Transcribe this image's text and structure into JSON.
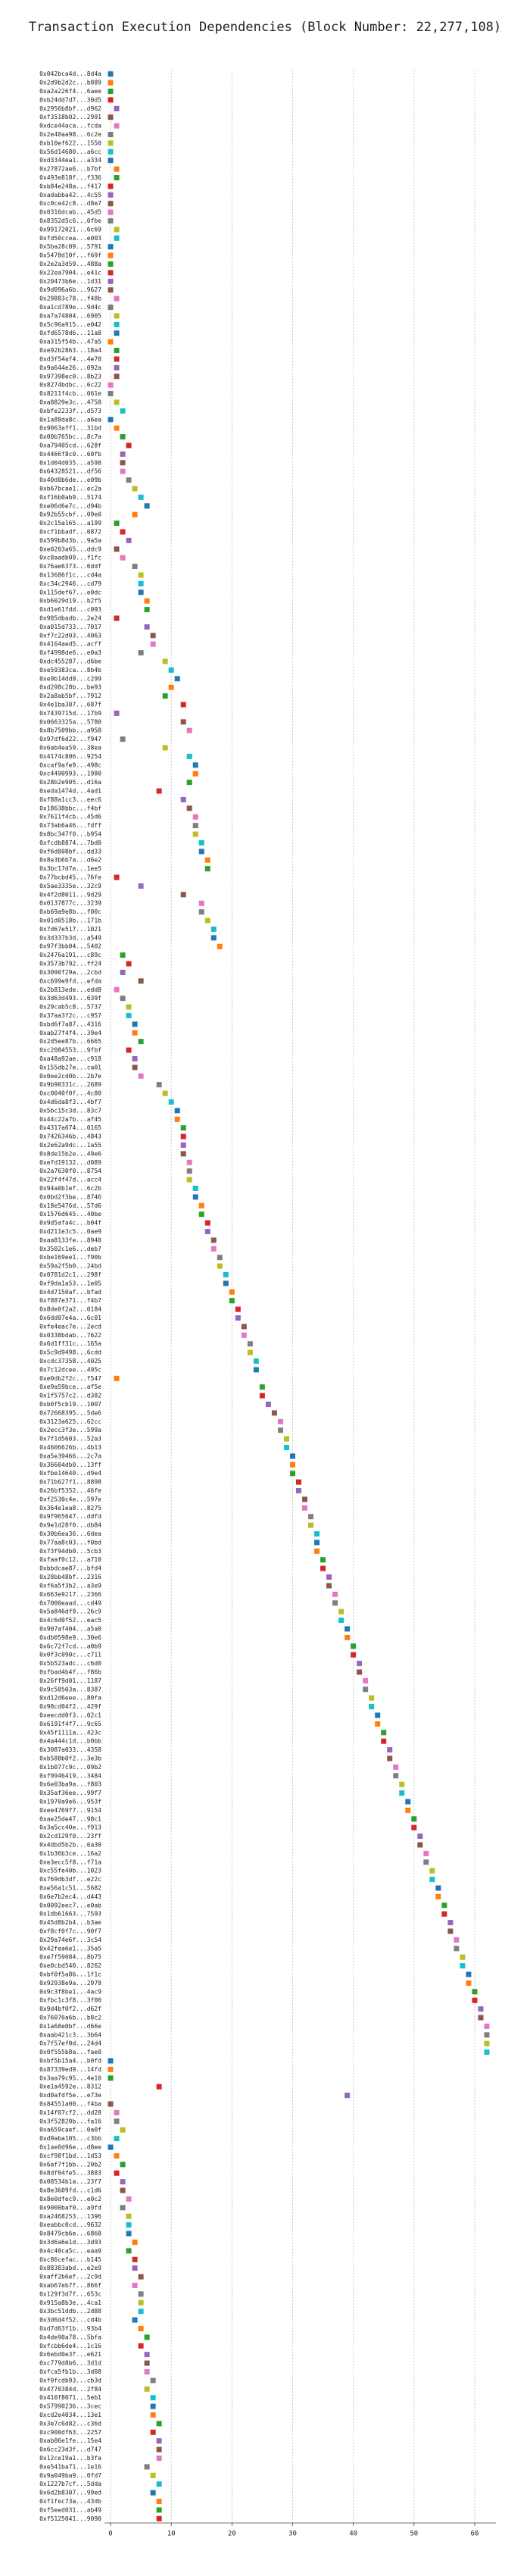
{
  "chart_data": {
    "type": "scatter",
    "orientation": "horizontal",
    "title": "Transaction Execution Dependencies (Block Number: 22,277,108)",
    "xlim": [
      -1,
      63.5
    ],
    "xticks": [
      0,
      10,
      20,
      30,
      40,
      50,
      60
    ],
    "grid": true,
    "palette": [
      "#1f77b4",
      "#ff7f0e",
      "#2ca02c",
      "#d62728",
      "#9467bd",
      "#8c564b",
      "#e377c2",
      "#7f7f7f",
      "#bcbd22",
      "#17becf"
    ],
    "categories": [
      "0x042bca4d...8d4a",
      "0x2d9b2d2c...b889",
      "0xa2a226f4...6aee",
      "0xb24dd7d7...30d5",
      "0x2956b8bf...d962",
      "0xf3518b02...2991",
      "0xdce44aca...fcda",
      "0x2e48aa98...6c2e",
      "0xb10ef622...1550",
      "0x56d14680...a6cc",
      "0xd3344ea1...a334",
      "0x27872ae6...b7bf",
      "0x493e818f...f336",
      "0xb84e248a...f417",
      "0xadabba42...4c55",
      "0xc0ce42c8...d8e7",
      "0x0316dcab...45d5",
      "0x8352d5c6...0fbe",
      "0x99172021...6c69",
      "0xfd50ccea...e003",
      "0x5ba28c09...5791",
      "0x5478d10f...f69f",
      "0x2e2a3d59...488a",
      "0x22ea7904...e41c",
      "0x20473b6e...1d31",
      "0x9d096a6b...9627",
      "0x29883c78...f48b",
      "0xa1cd789e...9d4c",
      "0xa7a74804...6905",
      "0x5c96a915...e042",
      "0xfd6578d6...11a8",
      "0xa315f54b...47a5",
      "0xe92b2863...18a4",
      "0xd3f54af4...4e70",
      "0x9a644e26...092a",
      "0x97398ec0...8b23",
      "0x8274bdbc...6c22",
      "0x8211f4cb...061e",
      "0xa8829e3c...4758",
      "0xbfe2233f...d573",
      "0x1a88da8c...a6ea",
      "0x9063aff1...31bd",
      "0x00b765bc...8c7a",
      "0xa79405cd...628f",
      "0x4466f8c0...60fb",
      "0x1d04d035...a598",
      "0x64328521...df56",
      "0x40d0b6de...e09b",
      "0xb67bcae1...ec2a",
      "0xf16b0ab9...5174",
      "0xe06d6e7c...d94b",
      "0x92b55cbf...09e0",
      "0x2c15a165...a199",
      "0xcf1bbadf...0872",
      "0x599b8d3b...9a5a",
      "0xe0203a65...ddc9",
      "0xc8aadb09...f1fc",
      "0x76ae6373...6ddf",
      "0x13686f1c...cd4a",
      "0xc34c2946...cd79",
      "0x115def67...e0dc",
      "0xb6029d19...b2f5",
      "0xd1e61fdd...c093",
      "0x985dbadb...2e24",
      "0xa015d733...7017",
      "0xf7c22d03...4063",
      "0x4164aed5...acff",
      "0xf4998de6...e0a3",
      "0xdc455287...d6be",
      "0xe59383ca...8b4b",
      "0xe9b14dd9...c299",
      "0xd298c28b...be93",
      "0x2a8ab5bf...7912",
      "0x4e1ba387...687f",
      "0x7439715d...17b9",
      "0x0663325a...5780",
      "0x8b7509bb...a958",
      "0x97df6d22...f947",
      "0x6ab4ea59...38ea",
      "0x4174c806...9254",
      "0xcaf9afe9...498c",
      "0xc4490993...1980",
      "0x28b2e905...d16a",
      "0xeda1474d...4ad1",
      "0xf88a1cc3...eec6",
      "0x18638bbc...f4bf",
      "0x7611f4cb...45d6",
      "0x73ab6a46...fdff",
      "0x8bc347f0...b954",
      "0xfcdb8874...7bd0",
      "0xf6d808bf...dd33",
      "0x8e3b6b7a...d6e2",
      "0x3bc17d7e...1ee5",
      "0x77bcbd45...76fe",
      "0x5ae3335e...32c9",
      "0x4f2d8011...9d29",
      "0x0137877c...3239",
      "0xb69a9e8b...f00c",
      "0x01d0518b...171b",
      "0x7d67e517...1021",
      "0x3d337b3d...a549",
      "0x97f3bb04...5402",
      "0x2476a191...c89c",
      "0x3573b792...ff24",
      "0x3090f29a...2cbd",
      "0xc699e9fd...efda",
      "0x2b813ede...edd8",
      "0x3d63d493...639f",
      "0x29cab5c8...5737",
      "0x37aa3f2c...c957",
      "0xbd6f7a87...4316",
      "0xab27f4f4...39e4",
      "0x2d5ee87b...6665",
      "0xc2084553...9fbf",
      "0xa48a92ae...c918",
      "0x155db27e...ca01",
      "0x0ee2cd0b...2b7e",
      "0x9b90331c...2689",
      "0xc0040f0f...4c80",
      "0x4d6da8f3...4bf7",
      "0x5bc15c3d...83c7",
      "0x44c22a7b...af45",
      "0x4317a674...0165",
      "0x7426346b...4843",
      "0x2e62a9dc...1a55",
      "0x8de15b2e...49e6",
      "0xefd19132...d089",
      "0x2a7630f0...8754",
      "0x22f4f47d...acc4",
      "0x94a0b1ef...6c2b",
      "0x0bd2f3be...8746",
      "0x18e5476d...57d6",
      "0x1576d645...40be",
      "0x9d5afa4c...b04f",
      "0xd211e3c5...0ae9",
      "0xaa8133fe...8940",
      "0x3502c1e6...deb7",
      "0xbe169ee1...f90b",
      "0x59a2f5b0...24bd",
      "0x0781d2c1...298f",
      "0xf9da1a53...1e05",
      "0x4d7150af...bfad",
      "0xf887e371...f4b7",
      "0x8de0f2a2...0184",
      "0x6dd07e4a...6c01",
      "0xfe4eac7e...2ecd",
      "0x0338bdab...7622",
      "0x6d1ff31c...165a",
      "0x5c9d9498...6cdd",
      "0xcdc37358...4025",
      "0x7c12dcee...495c",
      "0xe0db2f2c...f547",
      "0xe9a59bce...af5e",
      "0x1f5757c2...d382",
      "0xb0f5cb19...1007",
      "0x72668395...5de6",
      "0x3123a625...62cc",
      "0x2ecc3f3e...599a",
      "0x7f1d5603...52a3",
      "0x4606626b...4b13",
      "0xa5e39466...2c7a",
      "0x36604db0...13ff",
      "0xfbe14640...d9e4",
      "0x71b627f1...8898",
      "0x26bf5352...46fe",
      "0xf2530c4e...597e",
      "0x364e1ea8...8275",
      "0x9f965647...ddfd",
      "0x9e1d28f0...db84",
      "0x30b6ea36...6dea",
      "0x77aa8c03...f0bd",
      "0x73f94db0...5cb3",
      "0xfaaf0c12...a710",
      "0xbbdcae87...bfd4",
      "0x28bb48bf...2316",
      "0xf6a5f3b2...a3e9",
      "0x663e9217...2366",
      "0x7000eaad...cd49",
      "0x5a846df9...26c9",
      "0x4c6d0f52...eac5",
      "0x907af404...a5a0",
      "0xdb0598e9...30e6",
      "0x6c72f7cd...a0b9",
      "0x0f3c090c...c711",
      "0x5b523adc...c6d0",
      "0xfbad4b4f...f86b",
      "0x26ff9d01...1187",
      "0x9c58503a...8387",
      "0xd12d6eee...80fa",
      "0x98cd04f2...429f",
      "0xeecdd0f3...02c1",
      "0x6191f4f7...9c65",
      "0x45f1111a...423c",
      "0x4a444c1d...b0bb",
      "0x3087a033...4358",
      "0xb588b0f2...3e3b",
      "0x1b077c9c...09b2",
      "0xf9946419...3484",
      "0x6e03ba9a...f803",
      "0x35af36ee...99f7",
      "0x1970a9e6...953f",
      "0xee4769f7...9154",
      "0xae25de47...98c1",
      "0x3a5cc40e...f913",
      "0x2cd129f0...23ff",
      "0x4dbd5b2b...6a30",
      "0x1b36b3ce...16a2",
      "0xe3ecc5f8...f71a",
      "0xc55fe40b...1023",
      "0x769db3df...e22c",
      "0xe56a1c51...5682",
      "0x6e7b2ec4...d443",
      "0x0092eec7...e0ab",
      "0x1db61663...7593",
      "0x45d8b2b4...b3ae",
      "0xf8cf0f7c...90f7",
      "0x29a74e6f...3c54",
      "0x42fea6e1...35a5",
      "0xe7f59084...8b75",
      "0xe0cbd540...8262",
      "0xbf0f5a86...1f1c",
      "0x92938e9a...2978",
      "0x9c3f8be1...4ac9",
      "0xfbc1c3f8...3f00",
      "0x9d4bf0f2...d62f",
      "0x76076a6b...b8c2",
      "0x1a68e0bf...d66e",
      "0xaab421c3...3b64",
      "0x7f57ef0d...24d4",
      "0x0f555b8a...fae0",
      "0xbf5b15a4...b0fd",
      "0x87339ed9...14fd",
      "0x3aa79c95...4e10",
      "0xe1a4592e...8312",
      "0xd0afdf5e...e73e",
      "0x84551a00...f4ba",
      "0x14f07cf2...dd28",
      "0x3f52820b...fa16",
      "0xa659caef...0a0f",
      "0xd9aba105...c3bb",
      "0x1ae0d96e...d8ee",
      "0xcf98f1bd...1d53",
      "0x6af7f1bb...20b2",
      "0x8df04fe5...3883",
      "0x08534b1a...23f7",
      "0x8e3609fd...c1d6",
      "0x8e0dfec9...e0c2",
      "0x9000baf0...a9fd",
      "0xa2468253...1396",
      "0xeabbc0cd...9632",
      "0x8479cb6e...6868",
      "0x3d6a6e1d...3d93",
      "0x4c40ca5c...eaa9",
      "0xc86cefac...b145",
      "0x88383abd...e2e9",
      "0xaff2b6ef...2c9d",
      "0xab67eb7f...866f",
      "0x129f3d7f...653c",
      "0x915a8b3e...4ca1",
      "0x3bc51ddb...2d88",
      "0x3d6d4f52...cd4b",
      "0xd7d63f1b...93b4",
      "0x4de90a78...5bfa",
      "0xfcbb6de4...1c16",
      "0x6ebd0e3f...e621",
      "0xc779d8b6...3d1d",
      "0xfca5fb1b...3d08",
      "0xf0fcdb93...cb3d",
      "0x4770384d...2f84",
      "0x410f8071...5eb1",
      "0x57990236...3cec",
      "0xcd2e4034...13e1",
      "0x3e7c6d82...c36d",
      "0xc900df63...2257",
      "0xab06e1fe...15e4",
      "0x6cc23d3f...d747",
      "0x12ce19a1...b3fa",
      "0xe541ba71...1e16",
      "0x9a049ba9...0fd7",
      "0x1227b7cf...5dda",
      "0x6d2b8307...99ed",
      "0xf1fec73a...43db",
      "0xf5eed031...ab49",
      "0xf5125041...9090"
    ],
    "values": [
      0,
      0,
      0,
      0,
      1,
      0,
      1,
      0,
      0,
      0,
      0,
      1,
      1,
      0,
      0,
      0,
      0,
      0,
      1,
      1,
      0,
      0,
      0,
      0,
      0,
      0,
      1,
      0,
      1,
      1,
      1,
      0,
      1,
      1,
      1,
      1,
      0,
      0,
      1,
      2,
      0,
      1,
      2,
      3,
      2,
      2,
      2,
      3,
      4,
      5,
      6,
      4,
      1,
      2,
      3,
      1,
      2,
      4,
      5,
      5,
      5,
      6,
      6,
      1,
      6,
      7,
      7,
      5,
      9,
      10,
      11,
      10,
      9,
      12,
      1,
      12,
      13,
      2,
      9,
      13,
      14,
      14,
      13,
      8,
      12,
      13,
      14,
      14,
      14,
      15,
      15,
      16,
      16,
      1,
      5,
      12,
      15,
      15,
      16,
      17,
      17,
      18,
      2,
      3,
      2,
      5,
      1,
      2,
      3,
      3,
      4,
      4,
      5,
      3,
      4,
      4,
      5,
      8,
      9,
      10,
      11,
      11,
      12,
      12,
      12,
      12,
      13,
      13,
      13,
      14,
      14,
      15,
      15,
      16,
      16,
      17,
      17,
      18,
      18,
      19,
      19,
      20,
      20,
      21,
      21,
      22,
      22,
      23,
      23,
      24,
      24,
      1,
      25,
      25,
      26,
      27,
      28,
      28,
      29,
      29,
      30,
      30,
      30,
      31,
      31,
      32,
      32,
      33,
      33,
      34,
      34,
      34,
      35,
      35,
      36,
      36,
      37,
      37,
      38,
      38,
      39,
      39,
      40,
      40,
      41,
      41,
      42,
      42,
      43,
      43,
      44,
      44,
      45,
      45,
      46,
      46,
      47,
      47,
      48,
      48,
      49,
      49,
      50,
      50,
      51,
      51,
      52,
      52,
      53,
      53,
      54,
      54,
      55,
      55,
      56,
      56,
      57,
      57,
      58,
      58,
      59,
      59,
      60,
      60,
      61,
      61,
      62,
      62,
      62,
      62,
      0,
      0,
      0,
      8,
      39,
      0,
      1,
      1,
      2,
      1,
      0,
      1,
      2,
      1,
      2,
      2,
      3,
      2,
      3,
      3,
      3,
      4,
      3,
      4,
      4,
      5,
      4,
      5,
      5,
      5,
      4,
      5,
      6,
      5,
      6,
      6,
      6,
      7,
      6,
      7,
      7,
      7,
      8,
      7,
      8,
      8,
      8,
      6,
      7,
      8,
      7,
      8,
      8,
      8
    ]
  }
}
